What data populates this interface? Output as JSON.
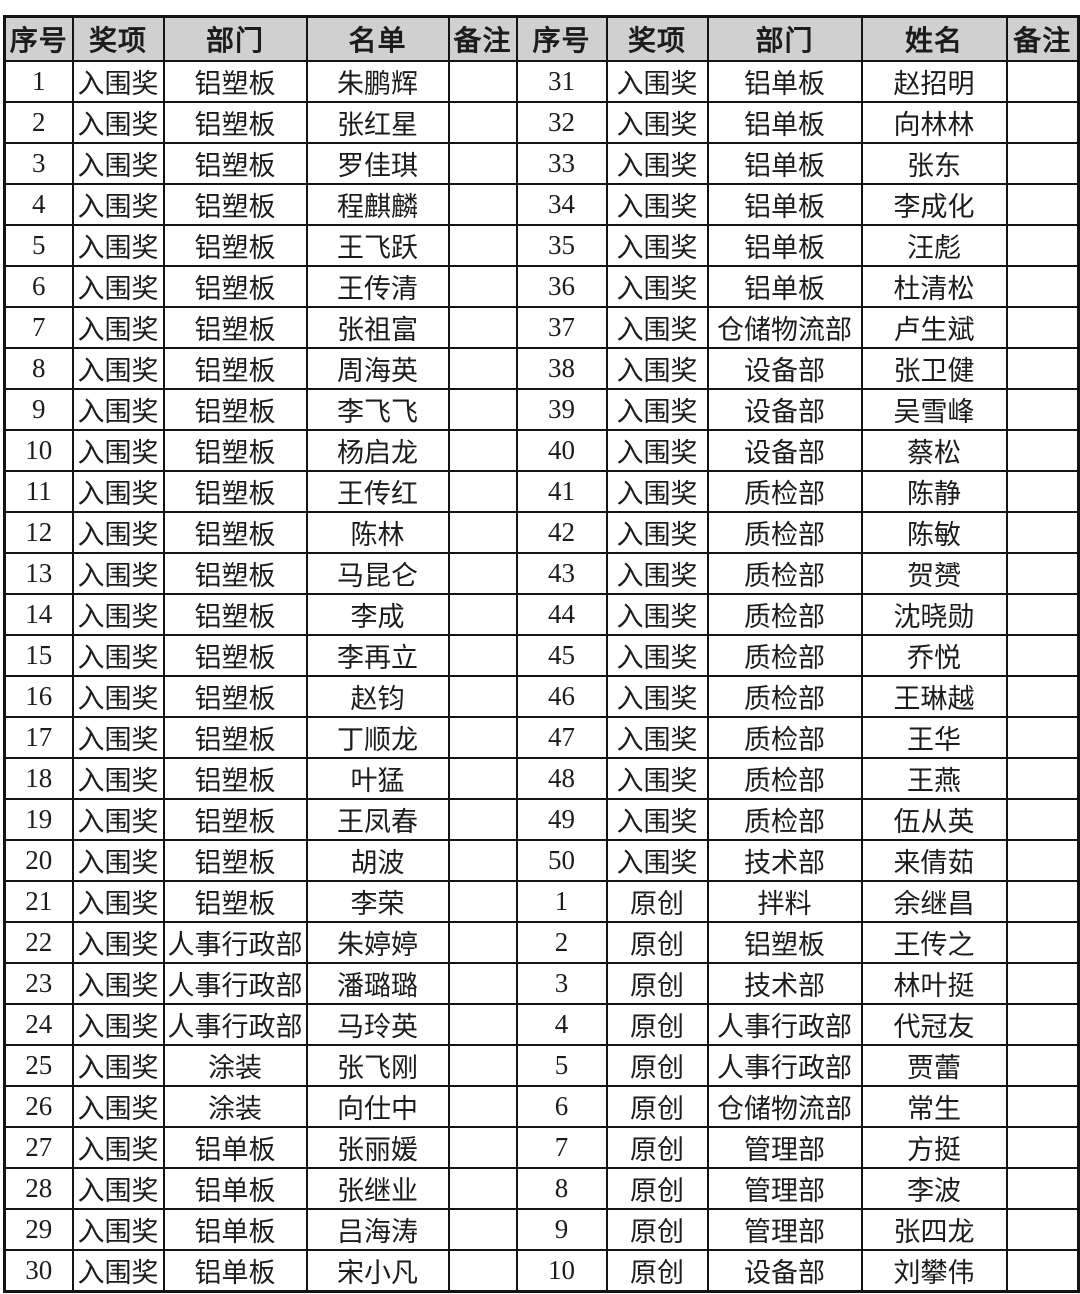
{
  "page": {
    "background_color": "#ffffff",
    "header_bg_color": "#d0d0d0",
    "border_color": "#141414",
    "text_color": "#1c1c1c"
  },
  "table": {
    "left": {
      "headers": [
        "序号",
        "奖项",
        "部门",
        "名单",
        "备注"
      ],
      "rows": [
        [
          "1",
          "入围奖",
          "铝塑板",
          "朱鹏辉",
          ""
        ],
        [
          "2",
          "入围奖",
          "铝塑板",
          "张红星",
          ""
        ],
        [
          "3",
          "入围奖",
          "铝塑板",
          "罗佳琪",
          ""
        ],
        [
          "4",
          "入围奖",
          "铝塑板",
          "程麒麟",
          ""
        ],
        [
          "5",
          "入围奖",
          "铝塑板",
          "王飞跃",
          ""
        ],
        [
          "6",
          "入围奖",
          "铝塑板",
          "王传清",
          ""
        ],
        [
          "7",
          "入围奖",
          "铝塑板",
          "张祖富",
          ""
        ],
        [
          "8",
          "入围奖",
          "铝塑板",
          "周海英",
          ""
        ],
        [
          "9",
          "入围奖",
          "铝塑板",
          "李飞飞",
          ""
        ],
        [
          "10",
          "入围奖",
          "铝塑板",
          "杨启龙",
          ""
        ],
        [
          "11",
          "入围奖",
          "铝塑板",
          "王传红",
          ""
        ],
        [
          "12",
          "入围奖",
          "铝塑板",
          "陈林",
          ""
        ],
        [
          "13",
          "入围奖",
          "铝塑板",
          "马昆仑",
          ""
        ],
        [
          "14",
          "入围奖",
          "铝塑板",
          "李成",
          ""
        ],
        [
          "15",
          "入围奖",
          "铝塑板",
          "李再立",
          ""
        ],
        [
          "16",
          "入围奖",
          "铝塑板",
          "赵钧",
          ""
        ],
        [
          "17",
          "入围奖",
          "铝塑板",
          "丁顺龙",
          ""
        ],
        [
          "18",
          "入围奖",
          "铝塑板",
          "叶猛",
          ""
        ],
        [
          "19",
          "入围奖",
          "铝塑板",
          "王凤春",
          ""
        ],
        [
          "20",
          "入围奖",
          "铝塑板",
          "胡波",
          ""
        ],
        [
          "21",
          "入围奖",
          "铝塑板",
          "李荣",
          ""
        ],
        [
          "22",
          "入围奖",
          "人事行政部",
          "朱婷婷",
          ""
        ],
        [
          "23",
          "入围奖",
          "人事行政部",
          "潘璐璐",
          ""
        ],
        [
          "24",
          "入围奖",
          "人事行政部",
          "马玲英",
          ""
        ],
        [
          "25",
          "入围奖",
          "涂装",
          "张飞刚",
          ""
        ],
        [
          "26",
          "入围奖",
          "涂装",
          "向仕中",
          ""
        ],
        [
          "27",
          "入围奖",
          "铝单板",
          "张丽媛",
          ""
        ],
        [
          "28",
          "入围奖",
          "铝单板",
          "张继业",
          ""
        ],
        [
          "29",
          "入围奖",
          "铝单板",
          "吕海涛",
          ""
        ],
        [
          "30",
          "入围奖",
          "铝单板",
          "宋小凡",
          ""
        ]
      ]
    },
    "right": {
      "headers": [
        "序号",
        "奖项",
        "部门",
        "姓名",
        "备注"
      ],
      "rows": [
        [
          "31",
          "入围奖",
          "铝单板",
          "赵招明",
          ""
        ],
        [
          "32",
          "入围奖",
          "铝单板",
          "向林林",
          ""
        ],
        [
          "33",
          "入围奖",
          "铝单板",
          "张东",
          ""
        ],
        [
          "34",
          "入围奖",
          "铝单板",
          "李成化",
          ""
        ],
        [
          "35",
          "入围奖",
          "铝单板",
          "汪彪",
          ""
        ],
        [
          "36",
          "入围奖",
          "铝单板",
          "杜清松",
          ""
        ],
        [
          "37",
          "入围奖",
          "仓储物流部",
          "卢生斌",
          ""
        ],
        [
          "38",
          "入围奖",
          "设备部",
          "张卫健",
          ""
        ],
        [
          "39",
          "入围奖",
          "设备部",
          "吴雪峰",
          ""
        ],
        [
          "40",
          "入围奖",
          "设备部",
          "蔡松",
          ""
        ],
        [
          "41",
          "入围奖",
          "质检部",
          "陈静",
          ""
        ],
        [
          "42",
          "入围奖",
          "质检部",
          "陈敏",
          ""
        ],
        [
          "43",
          "入围奖",
          "质检部",
          "贺赟",
          ""
        ],
        [
          "44",
          "入围奖",
          "质检部",
          "沈晓勋",
          ""
        ],
        [
          "45",
          "入围奖",
          "质检部",
          "乔悦",
          ""
        ],
        [
          "46",
          "入围奖",
          "质检部",
          "王琳越",
          ""
        ],
        [
          "47",
          "入围奖",
          "质检部",
          "王华",
          ""
        ],
        [
          "48",
          "入围奖",
          "质检部",
          "王燕",
          ""
        ],
        [
          "49",
          "入围奖",
          "质检部",
          "伍从英",
          ""
        ],
        [
          "50",
          "入围奖",
          "技术部",
          "来倩茹",
          ""
        ],
        [
          "1",
          "原创",
          "拌料",
          "余继昌",
          ""
        ],
        [
          "2",
          "原创",
          "铝塑板",
          "王传之",
          ""
        ],
        [
          "3",
          "原创",
          "技术部",
          "林叶挺",
          ""
        ],
        [
          "4",
          "原创",
          "人事行政部",
          "代冠友",
          ""
        ],
        [
          "5",
          "原创",
          "人事行政部",
          "贾蕾",
          ""
        ],
        [
          "6",
          "原创",
          "仓储物流部",
          "常生",
          ""
        ],
        [
          "7",
          "原创",
          "管理部",
          "方挺",
          ""
        ],
        [
          "8",
          "原创",
          "管理部",
          "李波",
          ""
        ],
        [
          "9",
          "原创",
          "管理部",
          "张四龙",
          ""
        ],
        [
          "10",
          "原创",
          "设备部",
          "刘攀伟",
          ""
        ]
      ]
    }
  }
}
